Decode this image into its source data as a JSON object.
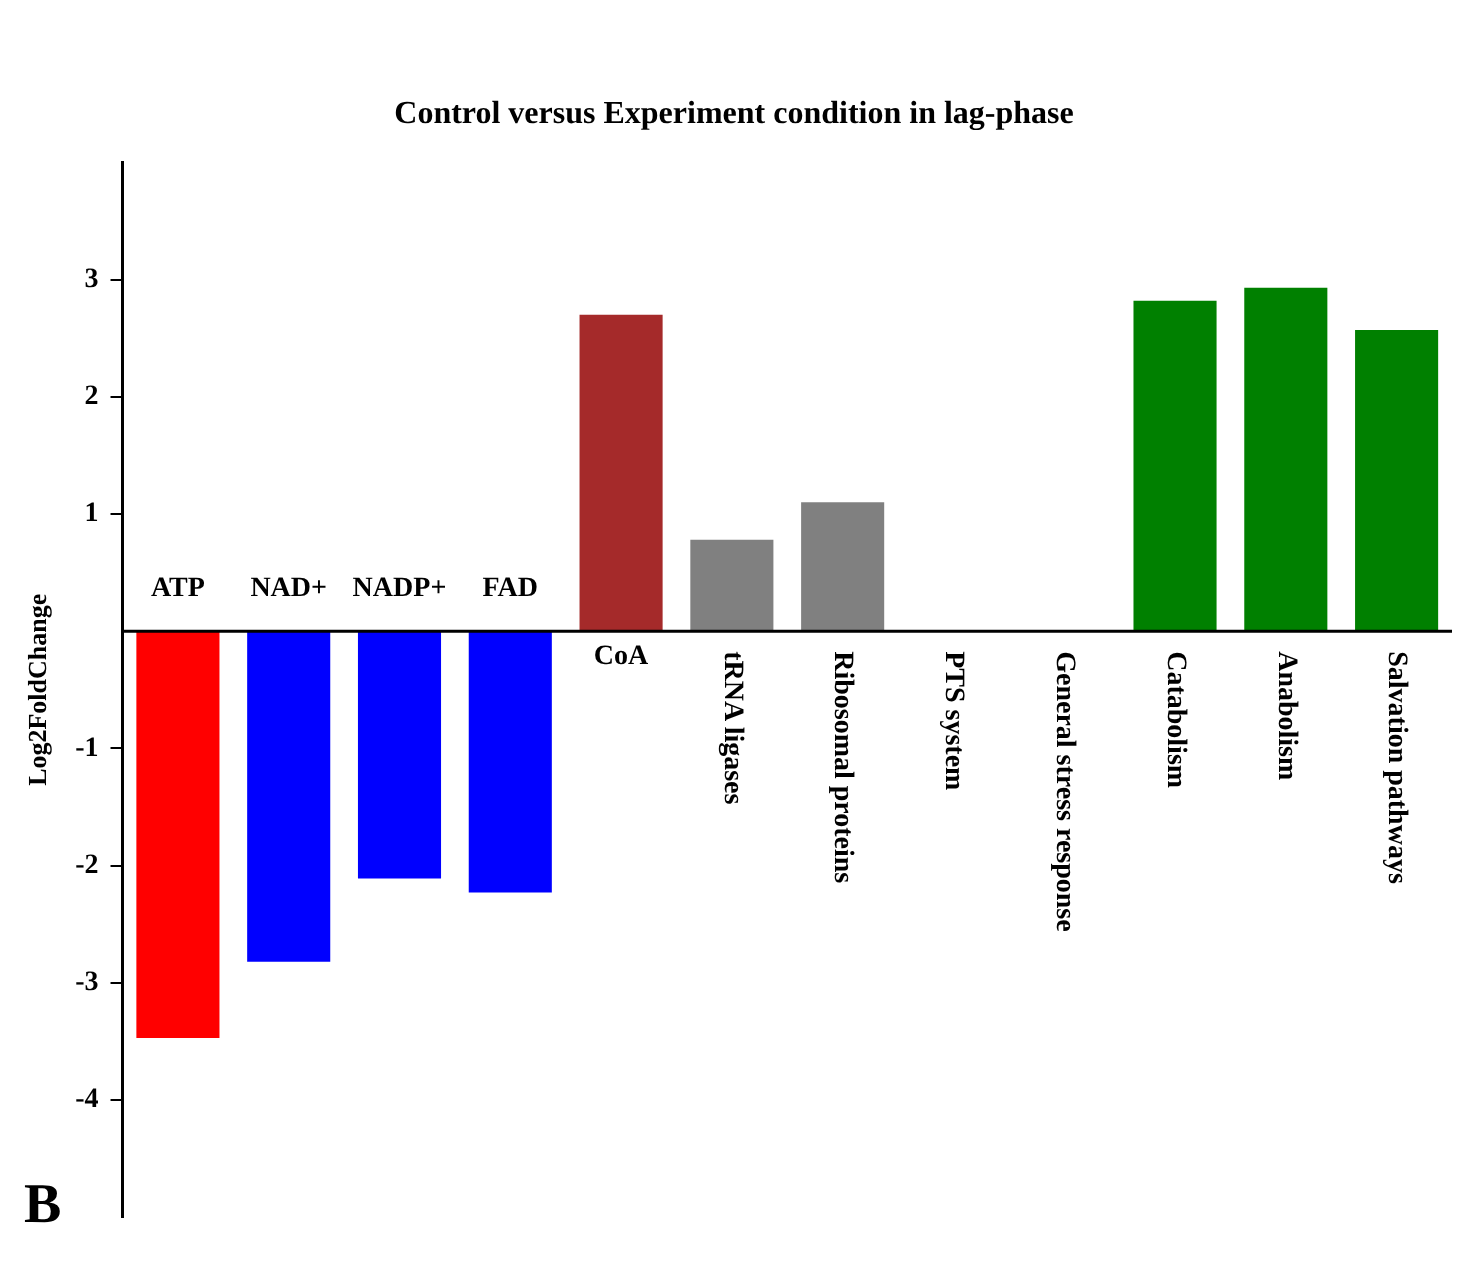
{
  "chart_data": {
    "type": "bar",
    "title": "Control versus Experiment condition in lag-phase",
    "ylabel": "Log2FoldChange",
    "categories": [
      "ATP",
      "NAD+",
      "NADP+",
      "FAD",
      "CoA",
      "tRNA ligases",
      "Ribosomal proteins",
      "PTS system",
      "General stress response",
      "Catabolism",
      "Anabolism",
      "Salvation pathways"
    ],
    "values": [
      -3.47,
      -2.82,
      -2.11,
      -2.23,
      2.7,
      0.78,
      1.1,
      0,
      0,
      2.82,
      2.93,
      2.57
    ],
    "colors": [
      "#ff0000",
      "#0000ff",
      "#0000ff",
      "#0000ff",
      "#a52a2a",
      "#808080",
      "#808080",
      "#808080",
      "#808080",
      "#008000",
      "#008000",
      "#008000"
    ],
    "ylim": [
      -5,
      4
    ],
    "yticks": [
      -4,
      -3,
      -2,
      -1,
      1,
      2,
      3
    ],
    "grid": false,
    "legend": false,
    "annotations": [
      "B"
    ]
  }
}
